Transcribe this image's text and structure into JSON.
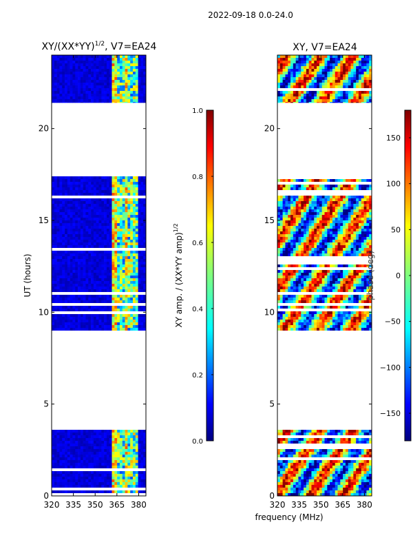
{
  "figure": {
    "suptitle": "2022-09-18 0.0-24.0",
    "shared_xlabel": "frequency (MHz)"
  },
  "chart_data": [
    {
      "type": "heatmap",
      "title_main": "XY/(XX*YY)",
      "title_sup": "1/2",
      "title_rest": ", V7=EA24",
      "ylabel": "UT (hours)",
      "xlim": [
        320,
        385
      ],
      "ylim": [
        0,
        24
      ],
      "xticks": [
        320,
        335,
        350,
        365,
        380
      ],
      "yticks": [
        0,
        5,
        10,
        15,
        20
      ],
      "data_bands_hours": [
        [
          0,
          3.6
        ],
        [
          9.0,
          17.4
        ],
        [
          21.4,
          24
        ]
      ],
      "colorbar": {
        "label_main": "XY amp. / (XX*YY amp)",
        "label_sup": "1/2",
        "range": [
          0.0,
          1.0
        ],
        "ticks": [
          "0.0",
          "0.2",
          "0.4",
          "0.6",
          "0.8",
          "1.0"
        ],
        "colormap": "jet"
      }
    },
    {
      "type": "heatmap",
      "title": "XY, V7=EA24",
      "xlim": [
        320,
        385
      ],
      "ylim": [
        0,
        24
      ],
      "xticks": [
        320,
        335,
        350,
        365,
        380
      ],
      "yticks": [
        0,
        5,
        10,
        15,
        20
      ],
      "data_bands_hours": [
        [
          0,
          3.6
        ],
        [
          9.0,
          17.4
        ],
        [
          21.4,
          24
        ]
      ],
      "colorbar": {
        "label": "phase (deg)",
        "range": [
          -180,
          180
        ],
        "ticks": [
          "−150",
          "−100",
          "−50",
          "0",
          "50",
          "100",
          "150"
        ],
        "colormap": "jet"
      }
    }
  ]
}
